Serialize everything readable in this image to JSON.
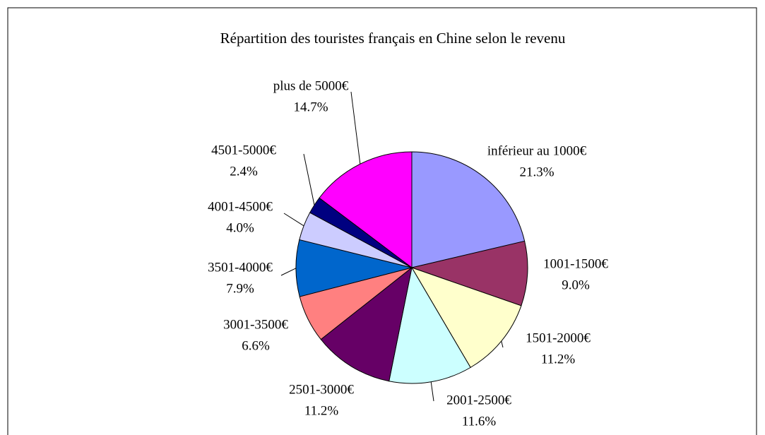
{
  "chart_data": {
    "type": "pie",
    "title": "Répartition des touristes français en Chine selon le revenu",
    "categories": [
      "inférieur au 1000€",
      "1001-1500€",
      "1501-2000€",
      "2001-2500€",
      "2501-3000€",
      "3001-3500€",
      "3501-4000€",
      "4001-4500€",
      "4501-5000€",
      "plus de 5000€"
    ],
    "values": [
      21.3,
      9.0,
      11.2,
      11.6,
      11.2,
      6.6,
      7.9,
      4.0,
      2.4,
      14.7
    ],
    "value_labels": [
      "21.3%",
      "9.0%",
      "11.2%",
      "11.6%",
      "11.2%",
      "6.6%",
      "7.9%",
      "4.0%",
      "2.4%",
      "14.7%"
    ],
    "colors": [
      "#9999ff",
      "#993366",
      "#ffffcc",
      "#ccffff",
      "#660066",
      "#ff8080",
      "#0066cc",
      "#ccccff",
      "#000080",
      "#ff00ff"
    ]
  }
}
